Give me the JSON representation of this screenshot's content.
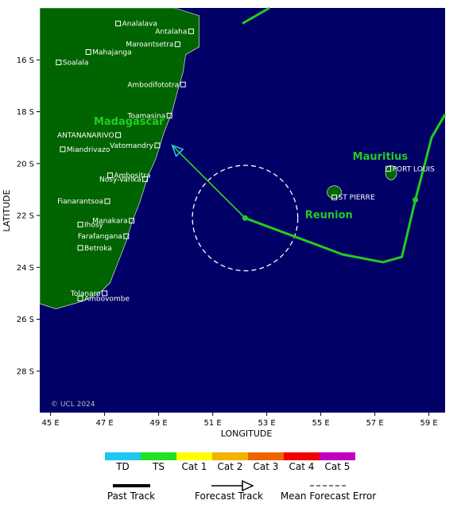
{
  "map": {
    "regions": [
      {
        "name": "Madagascar"
      },
      {
        "name": "Mauritius"
      },
      {
        "name": "Reunion"
      }
    ],
    "places": [
      {
        "name": "Analalava",
        "lon": 47.5,
        "lat": -14.6
      },
      {
        "name": "Antalaha",
        "lon": 50.2,
        "lat": -14.9
      },
      {
        "name": "Maroantsetra",
        "lon": 49.7,
        "lat": -15.4
      },
      {
        "name": "Mahajanga",
        "lon": 46.4,
        "lat": -15.7
      },
      {
        "name": "Soalala",
        "lon": 45.3,
        "lat": -16.1
      },
      {
        "name": "Ambodifototra",
        "lon": 49.9,
        "lat": -16.95
      },
      {
        "name": "Toamasina",
        "lon": 49.4,
        "lat": -18.15
      },
      {
        "name": "ANTANANARIVO",
        "lon": 47.5,
        "lat": -18.9
      },
      {
        "name": "Vatomandry",
        "lon": 48.95,
        "lat": -19.3
      },
      {
        "name": "Miandrivazo",
        "lon": 45.45,
        "lat": -19.45
      },
      {
        "name": "Ambositra",
        "lon": 47.2,
        "lat": -20.45
      },
      {
        "name": "Nosy-Varika",
        "lon": 48.5,
        "lat": -20.6
      },
      {
        "name": "Fianarantsoa",
        "lon": 47.1,
        "lat": -21.45
      },
      {
        "name": "Manakara",
        "lon": 48.0,
        "lat": -22.2
      },
      {
        "name": "Ihosy",
        "lon": 46.1,
        "lat": -22.35
      },
      {
        "name": "Farafangana",
        "lon": 47.8,
        "lat": -22.8
      },
      {
        "name": "Betroka",
        "lon": 46.1,
        "lat": -23.25
      },
      {
        "name": "Tolanaro",
        "lon": 47.0,
        "lat": -25.0
      },
      {
        "name": "Ambovombe",
        "lon": 46.1,
        "lat": -25.2
      },
      {
        "name": "PORT LOUIS",
        "lon": 57.5,
        "lat": -20.2
      },
      {
        "name": "ST PIERRE",
        "lon": 55.5,
        "lat": -21.3
      }
    ],
    "x_ticks": [
      "45 E",
      "47 E",
      "49 E",
      "51 E",
      "53 E",
      "55 E",
      "57 E",
      "59 E"
    ],
    "x_tick_values": [
      45,
      47,
      49,
      51,
      53,
      55,
      57,
      59
    ],
    "y_ticks": [
      "16 S",
      "18 S",
      "20 S",
      "22 S",
      "24 S",
      "26 S",
      "28 S"
    ],
    "y_tick_values": [
      -16,
      -18,
      -20,
      -22,
      -24,
      -26,
      -28
    ],
    "x_axis_label": "LONGITUDE",
    "y_axis_label": "LATITUDE",
    "copyright": "© UCL 2024",
    "ocean_color": "#000066",
    "land_color": "#006400",
    "lon_range": [
      44.6,
      59.6
    ],
    "lat_range": [
      -29.6,
      -14.0
    ]
  },
  "storm": {
    "past_track": [
      {
        "lon": 52.2,
        "lat": -22.1
      },
      {
        "lon": 55.8,
        "lat": -23.5
      },
      {
        "lon": 57.3,
        "lat": -23.8
      },
      {
        "lon": 58.0,
        "lat": -23.6
      },
      {
        "lon": 58.5,
        "lat": -21.4
      },
      {
        "lon": 59.1,
        "lat": -19.0
      },
      {
        "lon": 59.6,
        "lat": -18.1
      }
    ],
    "past_track_top": [
      {
        "lon": 52.1,
        "lat": -14.6
      },
      {
        "lon": 53.1,
        "lat": -14.0
      }
    ],
    "past_positions": [
      {
        "lon": 58.5,
        "lat": -21.4
      },
      {
        "lon": 52.2,
        "lat": -22.1
      }
    ],
    "forecast_track": [
      {
        "lon": 52.2,
        "lat": -22.1
      },
      {
        "lon": 49.5,
        "lat": -19.3
      }
    ],
    "forecast_error_center": {
      "lon": 52.2,
      "lat": -22.1
    },
    "forecast_error_radius_deg": 1.95,
    "track_color": "#22cc22",
    "forecast_arrow_color": "#33bbee"
  },
  "legend": {
    "categories": [
      {
        "label": "TD",
        "color": "#1ec8f0"
      },
      {
        "label": "TS",
        "color": "#22e022"
      },
      {
        "label": "Cat 1",
        "color": "#ffff00"
      },
      {
        "label": "Cat 2",
        "color": "#f0b400"
      },
      {
        "label": "Cat 3",
        "color": "#f06400"
      },
      {
        "label": "Cat 4",
        "color": "#f00000"
      },
      {
        "label": "Cat 5",
        "color": "#c000c0"
      }
    ],
    "past_track_label": "Past Track",
    "forecast_track_label": "Forecast Track",
    "mean_error_label": "Mean Forecast Error"
  }
}
